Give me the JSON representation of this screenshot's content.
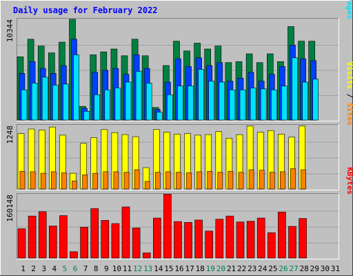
{
  "chart_data": {
    "type": "bar",
    "title": "Daily usage for February 2022",
    "x": [
      "1",
      "2",
      "3",
      "4",
      "5",
      "6",
      "7",
      "8",
      "9",
      "10",
      "11",
      "12",
      "13",
      "14",
      "15",
      "16",
      "17",
      "18",
      "19",
      "20",
      "21",
      "22",
      "23",
      "24",
      "25",
      "26",
      "27",
      "28",
      "29",
      "30",
      "31"
    ],
    "weekend_days": [
      5,
      6,
      12,
      13,
      19,
      20,
      26,
      27
    ],
    "panels": [
      {
        "id": "hits-files-pages",
        "max_label": "10344",
        "ymax": 10344,
        "legend": [
          "Pages",
          "Files",
          "Hits"
        ],
        "series": [
          {
            "name": "Hits",
            "color": "#008040",
            "values": [
              6500,
              8300,
              7600,
              6900,
              8000,
              10344,
              1400,
              6700,
              7000,
              7300,
              6600,
              8300,
              6600,
              1300,
              5600,
              8100,
              7100,
              7900,
              7300,
              7600,
              5900,
              6000,
              6800,
              5900,
              6800,
              6000,
              9600,
              8100,
              8100,
              0,
              0
            ]
          },
          {
            "name": "Files",
            "color": "#0040ff",
            "values": [
              4800,
              6000,
              5300,
              4800,
              5600,
              8300,
              1200,
              4900,
              5100,
              5300,
              4700,
              6700,
              5300,
              1100,
              3900,
              6300,
              5500,
              6400,
              5600,
              5900,
              4000,
              4300,
              4900,
              4000,
              4700,
              5500,
              7700,
              6300,
              6100,
              0,
              0
            ]
          },
          {
            "name": "Pages",
            "color": "#00e0ff",
            "values": [
              3100,
              3800,
              4400,
              3600,
              3700,
              6700,
              900,
              2600,
              3100,
              3300,
              3900,
              5000,
              3800,
              800,
              2600,
              3500,
              3500,
              5200,
              4000,
              3900,
              3100,
              3100,
              3300,
              3200,
              3100,
              3500,
              6400,
              3900,
              4200,
              0,
              0
            ]
          }
        ]
      },
      {
        "id": "visits-sites",
        "max_label": "1248",
        "ymax": 1248,
        "legend": [
          "Sites",
          "Visits"
        ],
        "series": [
          {
            "name": "Visits",
            "color": "#ffff00",
            "values": [
              1090,
              1180,
              1160,
              1220,
              1060,
              310,
              900,
              1010,
              1170,
              1110,
              1070,
              1030,
              420,
              1170,
              1120,
              1080,
              1090,
              1060,
              1070,
              1130,
              1000,
              1070,
              1240,
              1120,
              1150,
              1080,
              1020,
              1240,
              0,
              0,
              0
            ]
          },
          {
            "name": "Sites",
            "color": "#ff8000",
            "values": [
              350,
              340,
              310,
              340,
              320,
              160,
              280,
              310,
              340,
              340,
              330,
              380,
              150,
              330,
              340,
              330,
              320,
              340,
              350,
              330,
              350,
              330,
              380,
              370,
              330,
              340,
              400,
              380,
              0,
              0,
              0
            ]
          }
        ]
      },
      {
        "id": "kbytes",
        "max_label": "160148",
        "ymax": 160148,
        "legend": [
          "KBytes"
        ],
        "series": [
          {
            "name": "KBytes",
            "color": "#ff0000",
            "values": [
              74000,
              106000,
              117000,
              81000,
              107000,
              16000,
              78000,
              125000,
              95000,
              87000,
              129000,
              76000,
              13000,
              101000,
              161000,
              92000,
              90000,
              96000,
              68000,
              98000,
              106000,
              91000,
              93000,
              101000,
              64000,
              116000,
              80000,
              100000,
              0,
              0,
              0
            ]
          }
        ]
      }
    ]
  }
}
